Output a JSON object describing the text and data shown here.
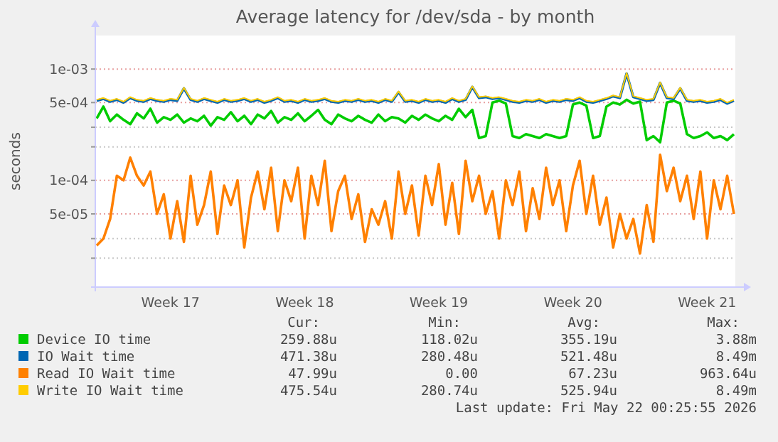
{
  "chart_data": {
    "type": "line",
    "title": "Average latency for /dev/sda - by month",
    "ylabel": "seconds",
    "log": "y",
    "grid": "y",
    "legend": "bottom",
    "ylim": [
      1.1e-05,
      0.002
    ],
    "yticks": [
      {
        "value": 2e-05,
        "label": null
      },
      {
        "value": 3e-05,
        "label": null
      },
      {
        "value": 5e-05,
        "label": "5e-05"
      },
      {
        "value": 0.0001,
        "label": "1e-04"
      },
      {
        "value": 0.0002,
        "label": null
      },
      {
        "value": 0.0003,
        "label": null
      },
      {
        "value": 0.0005,
        "label": "5e-04"
      },
      {
        "value": 0.001,
        "label": "1e-03"
      }
    ],
    "categories": [
      null,
      null,
      null,
      null,
      null,
      null,
      null,
      null,
      null,
      null,
      null,
      "Week 17",
      null,
      null,
      null,
      null,
      null,
      null,
      null,
      null,
      null,
      null,
      null,
      null,
      null,
      null,
      null,
      null,
      null,
      null,
      null,
      "Week 18",
      null,
      null,
      null,
      null,
      null,
      null,
      null,
      null,
      null,
      null,
      null,
      null,
      null,
      null,
      null,
      null,
      null,
      null,
      null,
      "Week 19",
      null,
      null,
      null,
      null,
      null,
      null,
      null,
      null,
      null,
      null,
      null,
      null,
      null,
      null,
      null,
      null,
      null,
      null,
      null,
      "Week 20",
      null,
      null,
      null,
      null,
      null,
      null,
      null,
      null,
      null,
      null,
      null,
      null,
      null,
      null,
      null,
      null,
      null,
      null,
      null,
      "Week 21",
      null,
      null,
      null,
      null
    ],
    "series": [
      {
        "name": "Device IO time",
        "color": "#00cc00",
        "values": [
          0.00036,
          0.00046,
          0.00034,
          0.00039,
          0.00035,
          0.00032,
          0.0004,
          0.00036,
          0.00044,
          0.00033,
          0.00037,
          0.00035,
          0.00039,
          0.00033,
          0.00036,
          0.00034,
          0.00038,
          0.00031,
          0.00037,
          0.00035,
          0.00041,
          0.00034,
          0.00038,
          0.00032,
          0.00039,
          0.00036,
          0.00042,
          0.00033,
          0.00037,
          0.00035,
          0.0004,
          0.00034,
          0.00038,
          0.00043,
          0.00035,
          0.00032,
          0.00039,
          0.00036,
          0.00034,
          0.00038,
          0.00035,
          0.00033,
          0.00039,
          0.00034,
          0.00037,
          0.00036,
          0.00033,
          0.00038,
          0.00035,
          0.00039,
          0.00036,
          0.00034,
          0.00038,
          0.00035,
          0.00044,
          0.00037,
          0.00043,
          0.00024,
          0.00025,
          0.0005,
          0.00052,
          0.00049,
          0.00025,
          0.00024,
          0.00026,
          0.00025,
          0.00024,
          0.00026,
          0.00025,
          0.00024,
          0.00025,
          0.00048,
          0.0005,
          0.00047,
          0.00024,
          0.00025,
          0.00046,
          0.0005,
          0.00048,
          0.00053,
          0.00049,
          0.00051,
          0.00023,
          0.00025,
          0.00022,
          0.0005,
          0.00052,
          0.00049,
          0.00026,
          0.00024,
          0.00025,
          0.00027,
          0.00024,
          0.00025,
          0.00023,
          0.00026
        ]
      },
      {
        "name": "IO Wait time",
        "color": "#0066b3",
        "values": [
          0.00052,
          0.00054,
          0.00051,
          0.00053,
          0.0005,
          0.00055,
          0.00052,
          0.00051,
          0.00054,
          0.00052,
          0.00051,
          0.00053,
          0.00052,
          0.00067,
          0.00053,
          0.00051,
          0.00054,
          0.00052,
          0.0005,
          0.00053,
          0.00051,
          0.00052,
          0.00054,
          0.00051,
          0.00053,
          0.0005,
          0.00052,
          0.00055,
          0.00051,
          0.00052,
          0.0005,
          0.00053,
          0.00051,
          0.00052,
          0.00054,
          0.00051,
          0.0005,
          0.00052,
          0.00051,
          0.00053,
          0.00051,
          0.00052,
          0.0005,
          0.00053,
          0.00051,
          0.00062,
          0.00051,
          0.00052,
          0.0005,
          0.00053,
          0.00051,
          0.00052,
          0.0005,
          0.00054,
          0.00051,
          0.00053,
          0.00069,
          0.00055,
          0.00056,
          0.00054,
          0.00055,
          0.00053,
          0.00051,
          0.0005,
          0.00052,
          0.00051,
          0.00053,
          0.0005,
          0.00052,
          0.00051,
          0.00053,
          0.00052,
          0.00055,
          0.00051,
          0.0005,
          0.00052,
          0.00054,
          0.00057,
          0.00055,
          0.00091,
          0.00056,
          0.00054,
          0.00052,
          0.00053,
          0.00075,
          0.00055,
          0.00054,
          0.00067,
          0.00052,
          0.00051,
          0.00052,
          0.0005,
          0.00051,
          0.00053,
          0.00049,
          0.00052
        ]
      },
      {
        "name": "Read IO Wait time",
        "color": "#ff8000",
        "values": [
          2.6e-05,
          3e-05,
          4.5e-05,
          0.00011,
          0.0001,
          0.00016,
          0.00011,
          9e-05,
          0.00012,
          5e-05,
          7.5e-05,
          3e-05,
          6.5e-05,
          2.8e-05,
          0.00011,
          4e-05,
          6e-05,
          0.00012,
          3.3e-05,
          9e-05,
          6e-05,
          0.0001,
          2.5e-05,
          7e-05,
          0.00012,
          5.5e-05,
          0.00013,
          3.5e-05,
          0.0001,
          6.5e-05,
          0.00013,
          3e-05,
          0.00011,
          6e-05,
          0.00015,
          3.5e-05,
          8e-05,
          0.00011,
          4.5e-05,
          7.5e-05,
          2.8e-05,
          5.5e-05,
          4e-05,
          6.5e-05,
          3e-05,
          0.00012,
          5e-05,
          9e-05,
          3.2e-05,
          0.00011,
          6e-05,
          0.00014,
          4e-05,
          9.5e-05,
          3.3e-05,
          0.00015,
          6.5e-05,
          0.00011,
          5e-05,
          8e-05,
          3e-05,
          0.0001,
          6e-05,
          0.00012,
          3.5e-05,
          8.5e-05,
          4.5e-05,
          0.00013,
          6e-05,
          0.0001,
          3.5e-05,
          9e-05,
          0.00015,
          5e-05,
          0.00011,
          4e-05,
          7e-05,
          2.5e-05,
          5e-05,
          3e-05,
          4.5e-05,
          2.2e-05,
          6e-05,
          2.8e-05,
          0.00017,
          8e-05,
          0.00013,
          6.5e-05,
          0.00011,
          4.5e-05,
          0.00012,
          3e-05,
          0.0001,
          5.5e-05,
          0.00011,
          5e-05
        ]
      },
      {
        "name": "Write IO Wait time",
        "color": "#ffcc00",
        "values": [
          0.00053,
          0.00055,
          0.00052,
          0.00054,
          0.00051,
          0.00056,
          0.00053,
          0.00052,
          0.00055,
          0.00053,
          0.00052,
          0.00054,
          0.00053,
          0.00068,
          0.00054,
          0.00052,
          0.00055,
          0.00053,
          0.00051,
          0.00054,
          0.00052,
          0.00053,
          0.00055,
          0.00052,
          0.00054,
          0.00051,
          0.00053,
          0.00056,
          0.00052,
          0.00053,
          0.00051,
          0.00054,
          0.00052,
          0.00053,
          0.00055,
          0.00052,
          0.00051,
          0.00053,
          0.00052,
          0.00054,
          0.00052,
          0.00053,
          0.00051,
          0.00054,
          0.00052,
          0.00063,
          0.00052,
          0.00053,
          0.00051,
          0.00054,
          0.00052,
          0.00053,
          0.00051,
          0.00055,
          0.00052,
          0.00054,
          0.0007,
          0.00056,
          0.00057,
          0.00055,
          0.00056,
          0.00054,
          0.00052,
          0.00051,
          0.00053,
          0.00052,
          0.00054,
          0.00051,
          0.00053,
          0.00052,
          0.00054,
          0.00053,
          0.00056,
          0.00052,
          0.00051,
          0.00053,
          0.00055,
          0.00058,
          0.00056,
          0.00092,
          0.00057,
          0.00055,
          0.00053,
          0.00054,
          0.00076,
          0.00056,
          0.00055,
          0.00068,
          0.00053,
          0.00052,
          0.00053,
          0.00051,
          0.00052,
          0.00054,
          0.0005,
          0.00053
        ]
      }
    ],
    "annotations": [
      "Cur:",
      "Min:",
      "Avg:",
      "Max:",
      "259.88u",
      "118.02u",
      "355.19u",
      "3.88m",
      "471.38u",
      "280.48u",
      "521.48u",
      "8.49m",
      "47.99u",
      "0.00",
      "67.23u",
      "963.64u",
      "475.54u",
      "280.74u",
      "525.94u",
      "8.49m",
      "Last update: Fri May 22 00:25:55 2026"
    ]
  }
}
